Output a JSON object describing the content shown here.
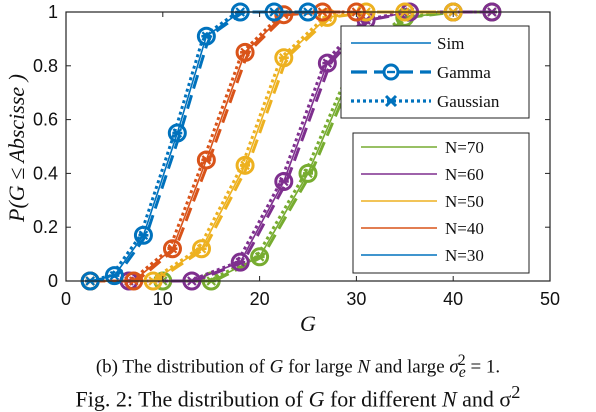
{
  "chart_data": {
    "type": "line",
    "xlabel": "G",
    "ylabel": "P(G ≤ Abscisse )",
    "xlim": [
      0,
      50
    ],
    "ylim": [
      0,
      1
    ],
    "xticks": [
      "0",
      "10",
      "20",
      "30",
      "40",
      "50"
    ],
    "yticks": [
      "0",
      "0.2",
      "0.4",
      "0.6",
      "0.8",
      "1"
    ],
    "legend_styles": [
      {
        "name": "Sim",
        "style": "solid"
      },
      {
        "name": "Gamma",
        "style": "dash-circle"
      },
      {
        "name": "Gaussian",
        "style": "dot-cross"
      }
    ],
    "series": [
      {
        "name": "N=70",
        "color": "#77AC30",
        "x": [
          2.5,
          10,
          15,
          20,
          25,
          30,
          35,
          40,
          44
        ],
        "values": [
          0.0,
          0.0,
          0.0,
          0.09,
          0.4,
          0.82,
          0.98,
          1.0,
          1.0
        ]
      },
      {
        "name": "N=60",
        "color": "#7E2F8E",
        "x": [
          6.5,
          13,
          18,
          22.5,
          27,
          31,
          35.5,
          40,
          44
        ],
        "values": [
          0.0,
          0.0,
          0.07,
          0.37,
          0.81,
          0.97,
          1.0,
          1.0,
          1.0
        ]
      },
      {
        "name": "N=50",
        "color": "#EDB120",
        "x": [
          2.5,
          9,
          14,
          18.5,
          22.5,
          27,
          31,
          35,
          40
        ],
        "values": [
          0.0,
          0.0,
          0.12,
          0.43,
          0.83,
          0.98,
          1.0,
          1.0,
          1.0
        ]
      },
      {
        "name": "N=40",
        "color": "#D95319",
        "x": [
          2.5,
          7,
          11,
          14.5,
          18.5,
          22.5,
          26.5,
          30
        ],
        "values": [
          0.0,
          0.0,
          0.12,
          0.45,
          0.85,
          0.99,
          1.0,
          1.0
        ]
      },
      {
        "name": "N=30",
        "color": "#0072BD",
        "x": [
          2.5,
          5,
          8,
          11.5,
          14.5,
          18,
          21.5,
          25
        ],
        "values": [
          0.0,
          0.02,
          0.17,
          0.55,
          0.91,
          1.0,
          1.0,
          1.0
        ]
      }
    ]
  },
  "caption": {
    "prefix": "(b) The distribution of ",
    "var1": "G",
    "mid1": " for large ",
    "var2": "N",
    "mid2": " and large ",
    "sigma": "σ",
    "sub": "e",
    "sup": "2",
    "suffix": " = 1."
  },
  "figure_caption_partial": {
    "prefix": "Fig. 2: The distribution of ",
    "var1": "G",
    "mid": " for different ",
    "var2": "N",
    "suffix": " and σ",
    "sup": "2"
  }
}
